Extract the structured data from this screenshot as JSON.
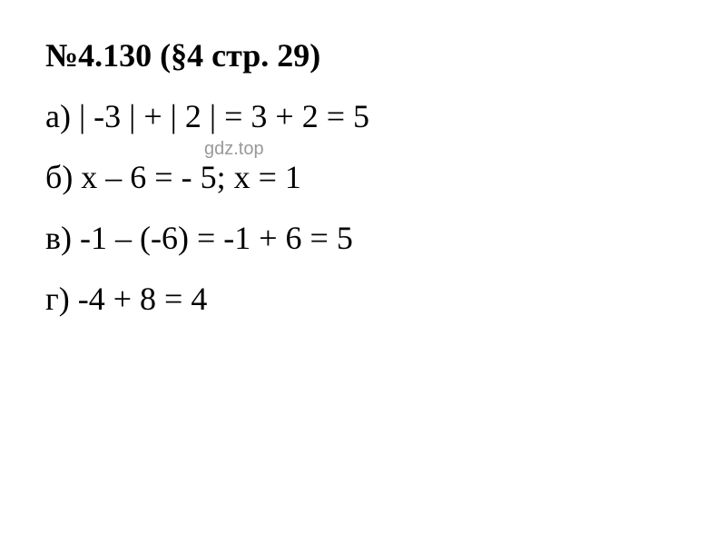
{
  "heading": "№4.130 (§4 стр. 29)",
  "watermark": "gdz.top",
  "lines": {
    "a": "а) | -3 | + | 2 | = 3 + 2 = 5",
    "b": "б) x – 6 = - 5; x = 1",
    "v": "в) -1 – (-6) = -1 + 6 = 5",
    "g": "г) -4 + 8 = 4"
  },
  "styling": {
    "background_color": "#ffffff",
    "text_color": "#000000",
    "watermark_color": "#999999",
    "font_family": "Times New Roman",
    "heading_fontsize": 36,
    "heading_fontweight": "bold",
    "body_fontsize": 36,
    "watermark_fontsize": 20,
    "line_spacing": 25
  }
}
